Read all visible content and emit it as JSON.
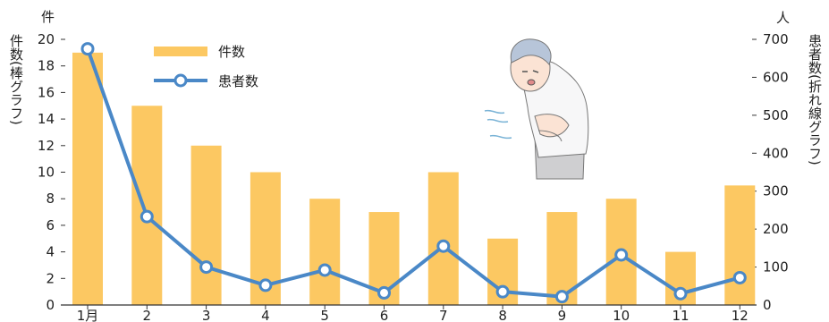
{
  "chart_data": {
    "type": "bar+line",
    "categories": [
      "1月",
      "2",
      "3",
      "4",
      "5",
      "6",
      "7",
      "8",
      "9",
      "10",
      "11",
      "12"
    ],
    "bar_series": {
      "name": "件数",
      "values": [
        19,
        15,
        12,
        10,
        8,
        7,
        10,
        5,
        7,
        8,
        4,
        9
      ],
      "color": "#fcc862"
    },
    "line_series": {
      "name": "患者数",
      "values": [
        675,
        233,
        100,
        52,
        92,
        32,
        155,
        35,
        22,
        132,
        30,
        72
      ],
      "color": "#4a88c7"
    },
    "left_axis": {
      "unit": "件",
      "label": "件数(棒グラフ)",
      "ylim": [
        0,
        20
      ],
      "ticks": [
        0,
        2,
        4,
        6,
        8,
        10,
        12,
        14,
        16,
        18,
        20
      ]
    },
    "right_axis": {
      "unit": "人",
      "label": "患者数(折れ線グラフ)",
      "ylim": [
        0,
        700
      ],
      "ticks": [
        0,
        100,
        200,
        300,
        400,
        500,
        600,
        700
      ]
    },
    "legend_position": "top-left",
    "grid": false
  }
}
